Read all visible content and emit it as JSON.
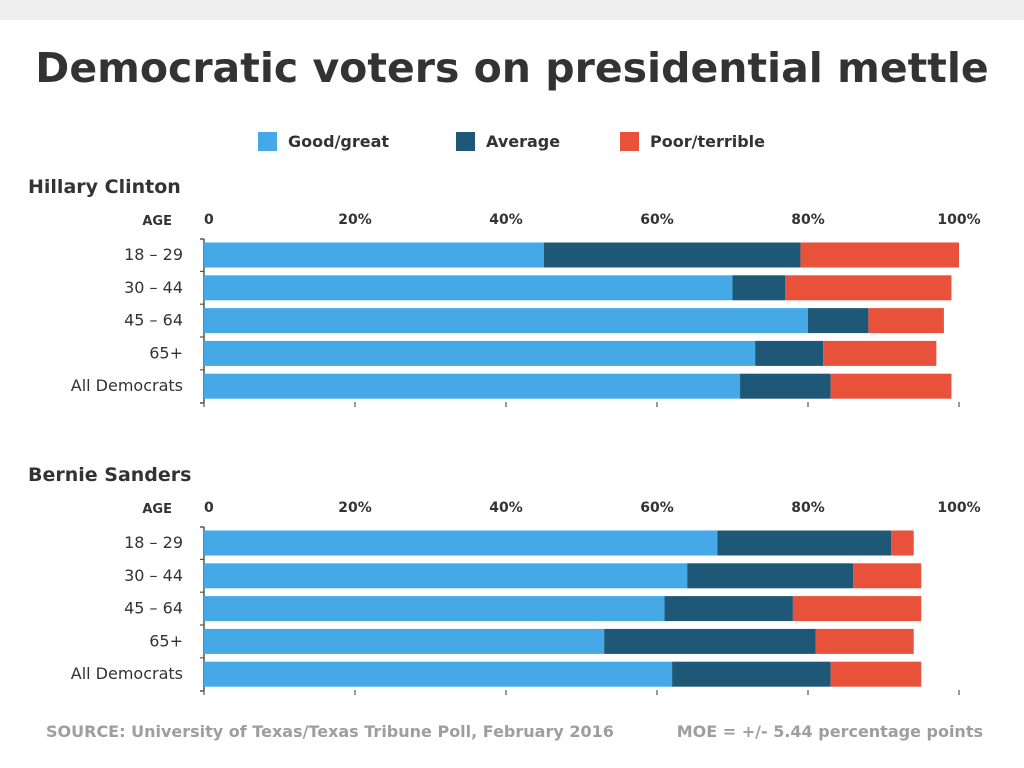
{
  "title": "Democratic voters on presidential mettle",
  "legend": [
    {
      "label": "Good/great",
      "color": "#44a9e6"
    },
    {
      "label": "Average",
      "color": "#1f5877"
    },
    {
      "label": "Poor/terrible",
      "color": "#e8513a"
    }
  ],
  "source": "SOURCE: University of Texas/Texas Tribune Poll, February 2016",
  "moe": "MOE = +/- 5.44 percentage points",
  "chart_data": [
    {
      "type": "bar",
      "orientation": "horizontal",
      "stacked": true,
      "title": "Hillary Clinton",
      "category_header": "AGE",
      "categories": [
        "18 – 29",
        "30 – 44",
        "45 – 64",
        "65+",
        "All Democrats"
      ],
      "xlim": [
        0,
        100
      ],
      "x_ticks": [
        "0",
        "20%",
        "40%",
        "60%",
        "80%",
        "100%"
      ],
      "series": [
        {
          "name": "Good/great",
          "values": [
            45,
            70,
            80,
            73,
            71
          ]
        },
        {
          "name": "Average",
          "values": [
            34,
            7,
            8,
            9,
            12
          ]
        },
        {
          "name": "Poor/terrible",
          "values": [
            21,
            22,
            10,
            15,
            16
          ]
        }
      ]
    },
    {
      "type": "bar",
      "orientation": "horizontal",
      "stacked": true,
      "title": "Bernie Sanders",
      "category_header": "AGE",
      "categories": [
        "18 – 29",
        "30 – 44",
        "45 – 64",
        "65+",
        "All Democrats"
      ],
      "xlim": [
        0,
        100
      ],
      "x_ticks": [
        "0",
        "20%",
        "40%",
        "60%",
        "80%",
        "100%"
      ],
      "series": [
        {
          "name": "Good/great",
          "values": [
            68,
            64,
            61,
            53,
            62
          ]
        },
        {
          "name": "Average",
          "values": [
            23,
            22,
            17,
            28,
            21
          ]
        },
        {
          "name": "Poor/terrible",
          "values": [
            3,
            9,
            17,
            13,
            12
          ]
        }
      ]
    }
  ]
}
